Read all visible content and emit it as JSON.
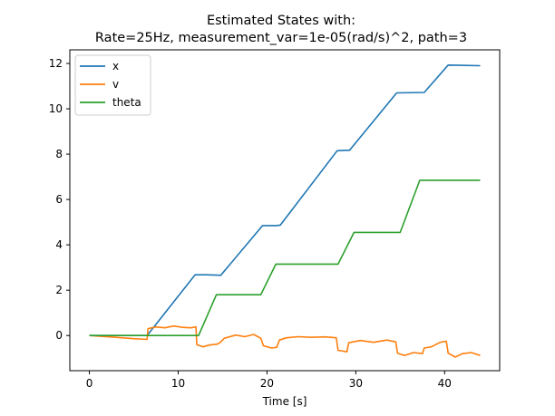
{
  "chart_data": {
    "type": "line",
    "title_line1": "Estimated States with:",
    "title_line2": "Rate=25Hz, measurement_var=1e-05(rad/s)^2, path=3",
    "xlabel": "Time [s]",
    "ylabel": "",
    "xlim": [
      -2.2,
      46.2
    ],
    "ylim": [
      -1.55,
      12.6
    ],
    "xticks": [
      0,
      10,
      20,
      30,
      40
    ],
    "yticks": [
      0,
      2,
      4,
      6,
      8,
      10,
      12
    ],
    "grid": false,
    "legend_placement": "top-left",
    "series": [
      {
        "name": "x",
        "color": "#1f77b4",
        "points": [
          [
            0,
            0
          ],
          [
            6.5,
            0
          ],
          [
            11.9,
            2.68
          ],
          [
            13.1,
            2.68
          ],
          [
            14.8,
            2.66
          ],
          [
            19.5,
            4.85
          ],
          [
            21.0,
            4.85
          ],
          [
            21.5,
            4.87
          ],
          [
            27.9,
            8.15
          ],
          [
            29.0,
            8.17
          ],
          [
            29.3,
            8.17
          ],
          [
            34.6,
            10.7
          ],
          [
            37.7,
            10.72
          ],
          [
            40.4,
            11.93
          ],
          [
            44,
            11.9
          ]
        ]
      },
      {
        "name": "v",
        "color": "#ff7f0e",
        "points": [
          [
            0,
            0
          ],
          [
            3.0,
            -0.08
          ],
          [
            5.0,
            -0.14
          ],
          [
            6.5,
            -0.17
          ],
          [
            6.6,
            0.3
          ],
          [
            7.5,
            0.38
          ],
          [
            8.5,
            0.34
          ],
          [
            9.5,
            0.42
          ],
          [
            10.5,
            0.36
          ],
          [
            11.4,
            0.34
          ],
          [
            12.0,
            0.38
          ],
          [
            12.1,
            -0.4
          ],
          [
            12.8,
            -0.5
          ],
          [
            13.5,
            -0.42
          ],
          [
            14.4,
            -0.38
          ],
          [
            14.7,
            -0.32
          ],
          [
            15.2,
            -0.12
          ],
          [
            16.5,
            0.02
          ],
          [
            17.5,
            -0.05
          ],
          [
            18.5,
            0.05
          ],
          [
            19.3,
            -0.12
          ],
          [
            19.6,
            -0.45
          ],
          [
            20.5,
            -0.55
          ],
          [
            21.1,
            -0.52
          ],
          [
            21.4,
            -0.2
          ],
          [
            22.2,
            -0.1
          ],
          [
            23.5,
            -0.05
          ],
          [
            25.0,
            -0.08
          ],
          [
            26.5,
            -0.06
          ],
          [
            27.8,
            -0.1
          ],
          [
            28.0,
            -0.65
          ],
          [
            29.0,
            -0.72
          ],
          [
            29.2,
            -0.32
          ],
          [
            30.5,
            -0.22
          ],
          [
            32.0,
            -0.3
          ],
          [
            33.5,
            -0.2
          ],
          [
            34.5,
            -0.28
          ],
          [
            34.7,
            -0.78
          ],
          [
            35.5,
            -0.88
          ],
          [
            36.5,
            -0.75
          ],
          [
            37.5,
            -0.8
          ],
          [
            37.7,
            -0.55
          ],
          [
            38.5,
            -0.5
          ],
          [
            39.5,
            -0.3
          ],
          [
            40.2,
            -0.25
          ],
          [
            40.4,
            -0.78
          ],
          [
            41.2,
            -0.95
          ],
          [
            42.0,
            -0.8
          ],
          [
            43.0,
            -0.75
          ],
          [
            44,
            -0.88
          ]
        ]
      },
      {
        "name": "theta",
        "color": "#2ca02c",
        "points": [
          [
            0,
            0
          ],
          [
            12.3,
            0
          ],
          [
            14.3,
            1.8
          ],
          [
            19.3,
            1.8
          ],
          [
            21.0,
            3.15
          ],
          [
            28.0,
            3.15
          ],
          [
            29.8,
            4.55
          ],
          [
            35.0,
            4.55
          ],
          [
            37.2,
            6.85
          ],
          [
            44,
            6.85
          ]
        ]
      }
    ]
  }
}
